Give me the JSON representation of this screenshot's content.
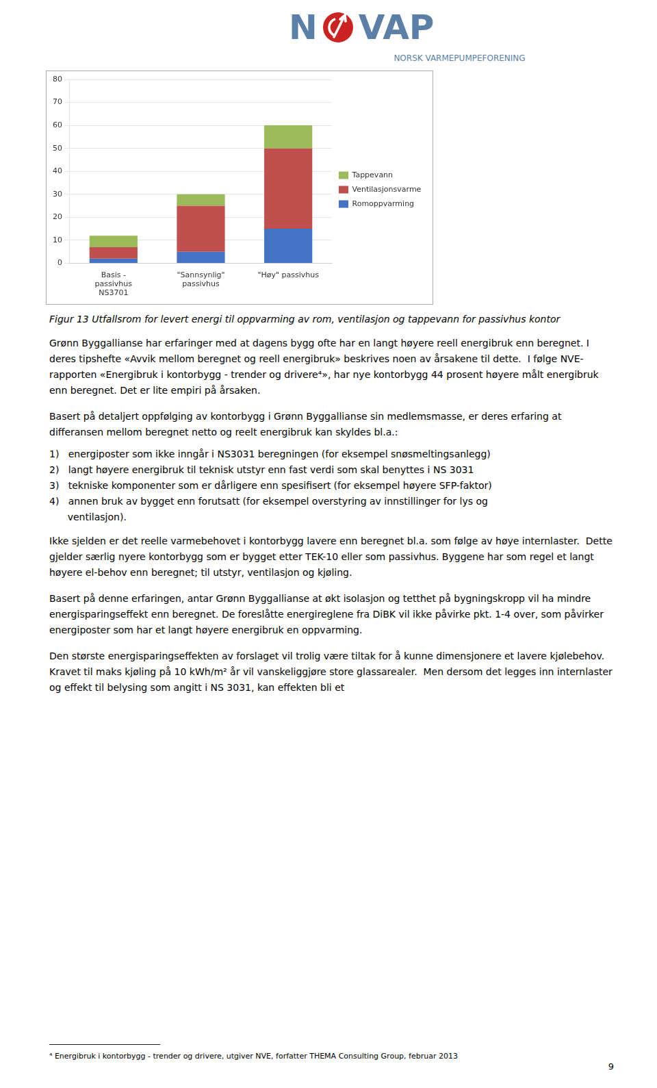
{
  "chart_data": {
    "type": "bar",
    "title": "Figur 13 Utfallsrom for levert energi til oppvarming av rom, ventilasjon og tappevann for passivhus kontor",
    "categories": [
      "Basis -\npassivhus\nNS3701",
      "\"Sannsynlig\"\npassivhus",
      "\"Høy\" passivhus"
    ],
    "series": [
      {
        "name": "Romoppvarming",
        "color": "#4472C4",
        "values": [
          2,
          5,
          15
        ]
      },
      {
        "name": "Ventilasjonsvarme",
        "color": "#C0504D",
        "values": [
          5,
          20,
          35
        ]
      },
      {
        "name": "Tappevann",
        "color": "#9BBB59",
        "values": [
          5,
          5,
          10
        ]
      }
    ],
    "stacked": true,
    "ylim": [
      0,
      80
    ],
    "yticks": [
      0,
      10,
      20,
      30,
      40,
      50,
      60,
      70,
      80
    ],
    "grid": true,
    "legend": "right",
    "annotations": [
      "N",
      "VAP",
      "NORSK VARMEPUMPEFORENING",
      "Grønn Byggallianse har erfaringer med at dagens bygg ofte har en langt høyere reell energibruk enn beregnet. I deres tipshefte «Avvik mellom beregnet og reell energibruk» beskrives noen av årsakene til dette.  I følge NVE-rapporten «Energibruk i kontorbygg - trender og drivere⁴», har nye kontorbygg 44 prosent høyere målt energibruk enn beregnet. Det er lite empiri på årsaken.",
      "Basert på detaljert oppfølging av kontorbygg i Grønn Byggallianse sin medlemsmasse, er deres erfaring at differansen mellom beregnet netto og reelt energibruk kan skyldes bl.a.:",
      "1)   energiposter som ikke inngår i NS3031 beregningen (for eksempel snøsmeltingsanlegg)",
      "2)   langt høyere energibruk til teknisk utstyr enn fast verdi som skal benyttes i NS 3031",
      "3)   tekniske komponenter som er dårligere enn spesifisert (for eksempel høyere SFP-faktor)",
      "4)   annen bruk av bygget enn forutsatt (for eksempel overstyring av innstillinger for lys og",
      "      ventilasjon).",
      "Ikke sjelden er det reelle varmebehovet i kontorbygg lavere enn beregnet bl.a. som følge av høye internlaster.  Dette gjelder særlig nyere kontorbygg som er bygget etter TEK-10 eller som passivhus. Byggene har som regel et langt høyere el-behov enn beregnet; til utstyr, ventilasjon og kjøling.",
      "Basert på denne erfaringen, antar Grønn Byggallianse at økt isolasjon og tetthet på bygningskropp vil ha mindre energisparingseffekt enn beregnet. De foreslåtte energireglene fra DiBK vil ikke påvirke pkt. 1-4 over, som påvirker energiposter som har et langt høyere energibruk en oppvarming.",
      "Den største energisparingseffekten av forslaget vil trolig være tiltak for å kunne dimensjonere et lavere kjølebehov. Kravet til maks kjøling på 10 kWh/m² år vil vanskeliggjøre store glassarealer.  Men dersom det legges inn internlaster og effekt til belysing som angitt i NS 3031, kan effekten bli et",
      "___________________________",
      "⁴ Energibruk i kontorbygg - trender og drivere, utgiver NVE, forfatter THEMA Consulting Group, februar 2013",
      "9"
    ]
  }
}
